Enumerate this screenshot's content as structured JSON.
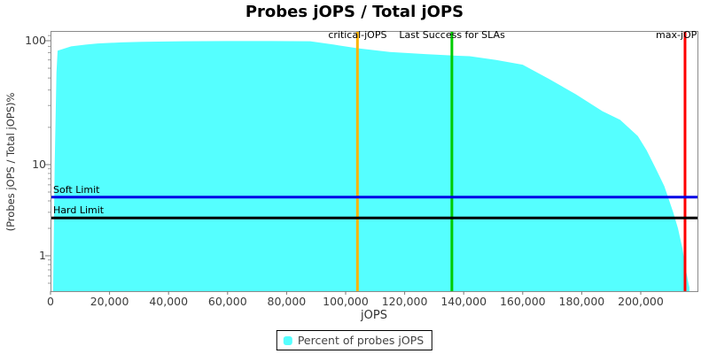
{
  "chart_data": {
    "type": "area",
    "title": "Probes jOPS / Total jOPS",
    "xlabel": "jOPS",
    "ylabel": "(Probes jOPS / Total jOPS)%",
    "y_scale": "log",
    "x_range": [
      0,
      219200
    ],
    "y_range": [
      0.41,
      120
    ],
    "grid": false,
    "legend_position": "bottom-center",
    "x_ticks": [
      {
        "v": 0,
        "label": "0"
      },
      {
        "v": 20000,
        "label": "20,000"
      },
      {
        "v": 40000,
        "label": "40,000"
      },
      {
        "v": 60000,
        "label": "60,000"
      },
      {
        "v": 80000,
        "label": "80,000"
      },
      {
        "v": 100000,
        "label": "100,000"
      },
      {
        "v": 120000,
        "label": "120,000"
      },
      {
        "v": 140000,
        "label": "140,000"
      },
      {
        "v": 160000,
        "label": "160,000"
      },
      {
        "v": 180000,
        "label": "180,000"
      },
      {
        "v": 200000,
        "label": "200,000"
      }
    ],
    "y_ticks": [
      {
        "v": 100,
        "label": "100"
      },
      {
        "v": 10,
        "label": "10"
      },
      {
        "v": 1,
        "label": "1"
      }
    ],
    "y_minor_ticks": [
      110,
      90,
      80,
      70,
      60,
      50,
      40,
      30,
      20,
      9,
      8,
      7,
      6,
      5,
      4,
      3,
      2,
      0.9,
      0.8,
      0.7,
      0.6,
      0.5
    ],
    "series": [
      {
        "name": "Percent of probes jOPS",
        "color": "#55FFFF",
        "points": [
          [
            900,
            0.45
          ],
          [
            1400,
            10
          ],
          [
            2000,
            55
          ],
          [
            2400,
            83
          ],
          [
            7000,
            90
          ],
          [
            12000,
            93
          ],
          [
            16000,
            95
          ],
          [
            24000,
            97
          ],
          [
            31000,
            98
          ],
          [
            45000,
            99
          ],
          [
            60000,
            99.3
          ],
          [
            75000,
            99.4
          ],
          [
            88000,
            99
          ],
          [
            96000,
            93
          ],
          [
            104000,
            87
          ],
          [
            115000,
            81
          ],
          [
            127000,
            78
          ],
          [
            136000,
            76
          ],
          [
            142000,
            75
          ],
          [
            151000,
            70
          ],
          [
            160000,
            64
          ],
          [
            169000,
            49
          ],
          [
            178000,
            37
          ],
          [
            187000,
            27
          ],
          [
            193000,
            23
          ],
          [
            199000,
            17
          ],
          [
            202000,
            13
          ],
          [
            205000,
            9.2
          ],
          [
            208000,
            5.8
          ],
          [
            211000,
            3.0
          ],
          [
            212600,
            2.0
          ],
          [
            214100,
            1.2
          ],
          [
            215000,
            0.8
          ],
          [
            215900,
            0.55
          ],
          [
            216500,
            0.45
          ]
        ]
      }
    ],
    "vertical_markers": [
      {
        "label": "critical-jOPS",
        "x": 104000,
        "color": "#FFB400"
      },
      {
        "label": "Last Success for SLAs",
        "x": 136000,
        "color": "#00CC00"
      },
      {
        "label": "max-jOP",
        "x": 215000,
        "color": "#FF0000"
      }
    ],
    "horizontal_limits": [
      {
        "label": "Soft Limit",
        "y": 4.4,
        "color": "#0000E6"
      },
      {
        "label": "Hard Limit",
        "y": 2.6,
        "color": "#000000"
      }
    ]
  },
  "legend": {
    "items": [
      {
        "label": "Percent of probes jOPS",
        "color": "#55FFFF"
      }
    ]
  }
}
